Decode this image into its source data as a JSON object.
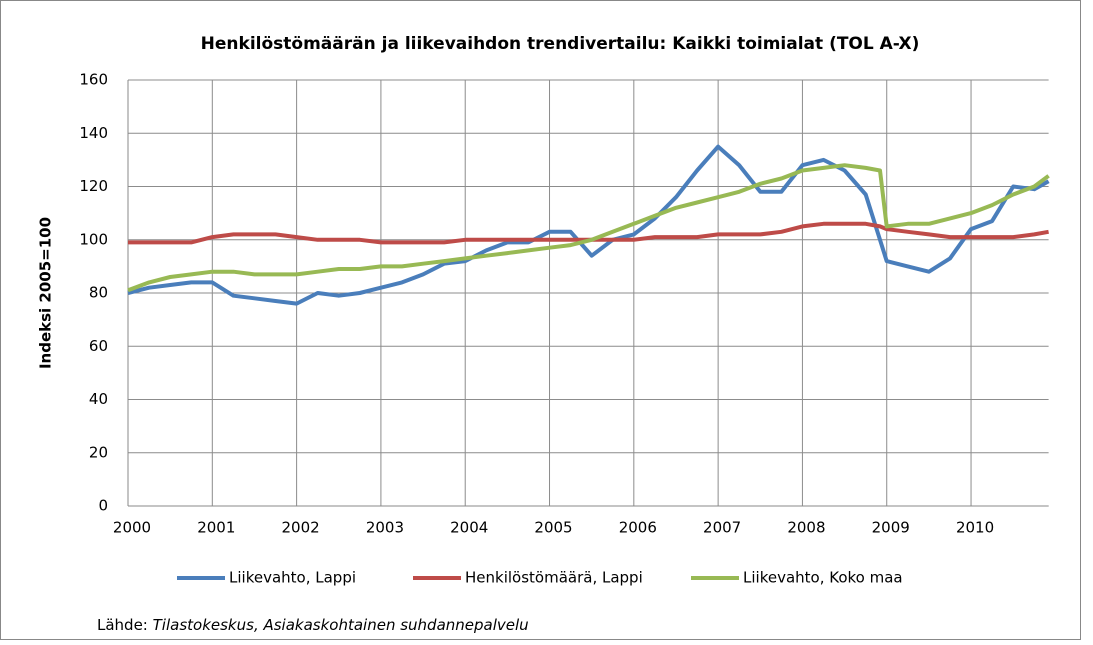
{
  "chart_data": {
    "type": "line",
    "title": "Henkilöstömäärän ja liikevaihdon trendivertailu: Kaikki toimialat (TOL A-X)",
    "y_label": "Indeksi 2005=100",
    "source_label": "Lähde:",
    "source_text": "Tilastokeskus, Asiakaskohtainen suhdannepalvelu",
    "x": [
      2000,
      2000.25,
      2000.5,
      2000.75,
      2001,
      2001.25,
      2001.5,
      2001.75,
      2002,
      2002.25,
      2002.5,
      2002.75,
      2003,
      2003.25,
      2003.5,
      2003.75,
      2004,
      2004.25,
      2004.5,
      2004.75,
      2005,
      2005.25,
      2005.5,
      2005.75,
      2006,
      2006.25,
      2006.5,
      2006.75,
      2007,
      2007.25,
      2007.5,
      2007.75,
      2008,
      2008.25,
      2008.5,
      2008.75,
      2008.92,
      2009,
      2009.25,
      2009.5,
      2009.75,
      2010,
      2010.25,
      2010.5,
      2010.75,
      2010.92
    ],
    "series": [
      {
        "name": "Liikevahto, Lappi",
        "color": "#4a7ebb",
        "values": [
          80,
          82,
          83,
          84,
          84,
          79,
          78,
          77,
          76,
          80,
          79,
          80,
          82,
          84,
          87,
          91,
          92,
          96,
          99,
          99,
          103,
          103,
          94,
          100,
          102,
          108,
          116,
          126,
          135,
          128,
          118,
          118,
          128,
          130,
          126,
          117,
          100,
          92,
          90,
          88,
          93,
          104,
          107,
          120,
          119,
          122
        ]
      },
      {
        "name": "Henkilöstömäärä, Lappi",
        "color": "#be4b48",
        "values": [
          99,
          99,
          99,
          99,
          101,
          102,
          102,
          102,
          101,
          100,
          100,
          100,
          99,
          99,
          99,
          99,
          100,
          100,
          100,
          100,
          100,
          100,
          100,
          100,
          100,
          101,
          101,
          101,
          102,
          102,
          102,
          103,
          105,
          106,
          106,
          106,
          105,
          104,
          103,
          102,
          101,
          101,
          101,
          101,
          102,
          103
        ]
      },
      {
        "name": "Liikevahto, Koko maa",
        "color": "#98b954",
        "values": [
          81,
          84,
          86,
          87,
          88,
          88,
          87,
          87,
          87,
          88,
          89,
          89,
          90,
          90,
          91,
          92,
          93,
          94,
          95,
          96,
          97,
          98,
          100,
          103,
          106,
          109,
          112,
          114,
          116,
          118,
          121,
          123,
          126,
          127,
          128,
          127,
          126,
          105,
          106,
          106,
          108,
          110,
          113,
          117,
          120,
          124
        ]
      }
    ],
    "xlim": [
      2000,
      2010.92
    ],
    "xticks": [
      2000,
      2001,
      2002,
      2003,
      2004,
      2005,
      2006,
      2007,
      2008,
      2009,
      2010
    ],
    "ylim": [
      0,
      160
    ],
    "yticks": [
      0,
      20,
      40,
      60,
      80,
      100,
      120,
      140,
      160
    ],
    "grid": true,
    "legend": "bottom"
  }
}
